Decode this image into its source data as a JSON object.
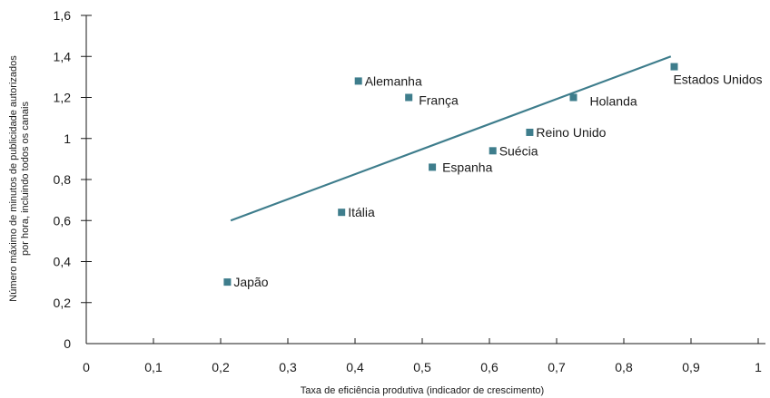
{
  "chart_data": {
    "type": "scatter",
    "title": "",
    "xlabel": "Taxa de eficiência produtiva (indicador de crescimento)",
    "ylabel_lines": [
      "Número máximo de minutos de publicidade autorizados",
      "por hora, incluindo todos os canais"
    ],
    "xlim": [
      0,
      1
    ],
    "ylim": [
      0,
      1.6
    ],
    "x_ticks": [
      {
        "value": 0,
        "label": "0"
      },
      {
        "value": 0.1,
        "label": "0,1"
      },
      {
        "value": 0.2,
        "label": "0,2"
      },
      {
        "value": 0.3,
        "label": "0,3"
      },
      {
        "value": 0.4,
        "label": "0,4"
      },
      {
        "value": 0.5,
        "label": "0,5"
      },
      {
        "value": 0.6,
        "label": "0,6"
      },
      {
        "value": 0.7,
        "label": "0,7"
      },
      {
        "value": 0.8,
        "label": "0,8"
      },
      {
        "value": 0.9,
        "label": "0,9"
      },
      {
        "value": 1,
        "label": "1"
      }
    ],
    "y_ticks": [
      {
        "value": 0,
        "label": "0"
      },
      {
        "value": 0.2,
        "label": "0,2"
      },
      {
        "value": 0.4,
        "label": "0,4"
      },
      {
        "value": 0.6,
        "label": "0,6"
      },
      {
        "value": 0.8,
        "label": "0,8"
      },
      {
        "value": 1,
        "label": "1"
      },
      {
        "value": 1.2,
        "label": "1,2"
      },
      {
        "value": 1.4,
        "label": "1,4"
      },
      {
        "value": 1.6,
        "label": "1,6"
      }
    ],
    "points": [
      {
        "name": "Japão",
        "x": 0.21,
        "y": 0.3
      },
      {
        "name": "Itália",
        "x": 0.38,
        "y": 0.64
      },
      {
        "name": "Alemanha",
        "x": 0.405,
        "y": 1.28
      },
      {
        "name": "França",
        "x": 0.48,
        "y": 1.2
      },
      {
        "name": "Espanha",
        "x": 0.515,
        "y": 0.86
      },
      {
        "name": "Suécia",
        "x": 0.605,
        "y": 0.94
      },
      {
        "name": "Reino Unido",
        "x": 0.66,
        "y": 1.03
      },
      {
        "name": "Holanda",
        "x": 0.725,
        "y": 1.2
      },
      {
        "name": "Estados Unidos",
        "x": 0.875,
        "y": 1.35
      }
    ],
    "trendline": {
      "x1": 0.215,
      "y1": 0.6,
      "x2": 0.87,
      "y2": 1.4
    },
    "colors": {
      "marker": "#3e7d8c",
      "line": "#3e7d8c",
      "axis": "#1a1a1a"
    }
  }
}
